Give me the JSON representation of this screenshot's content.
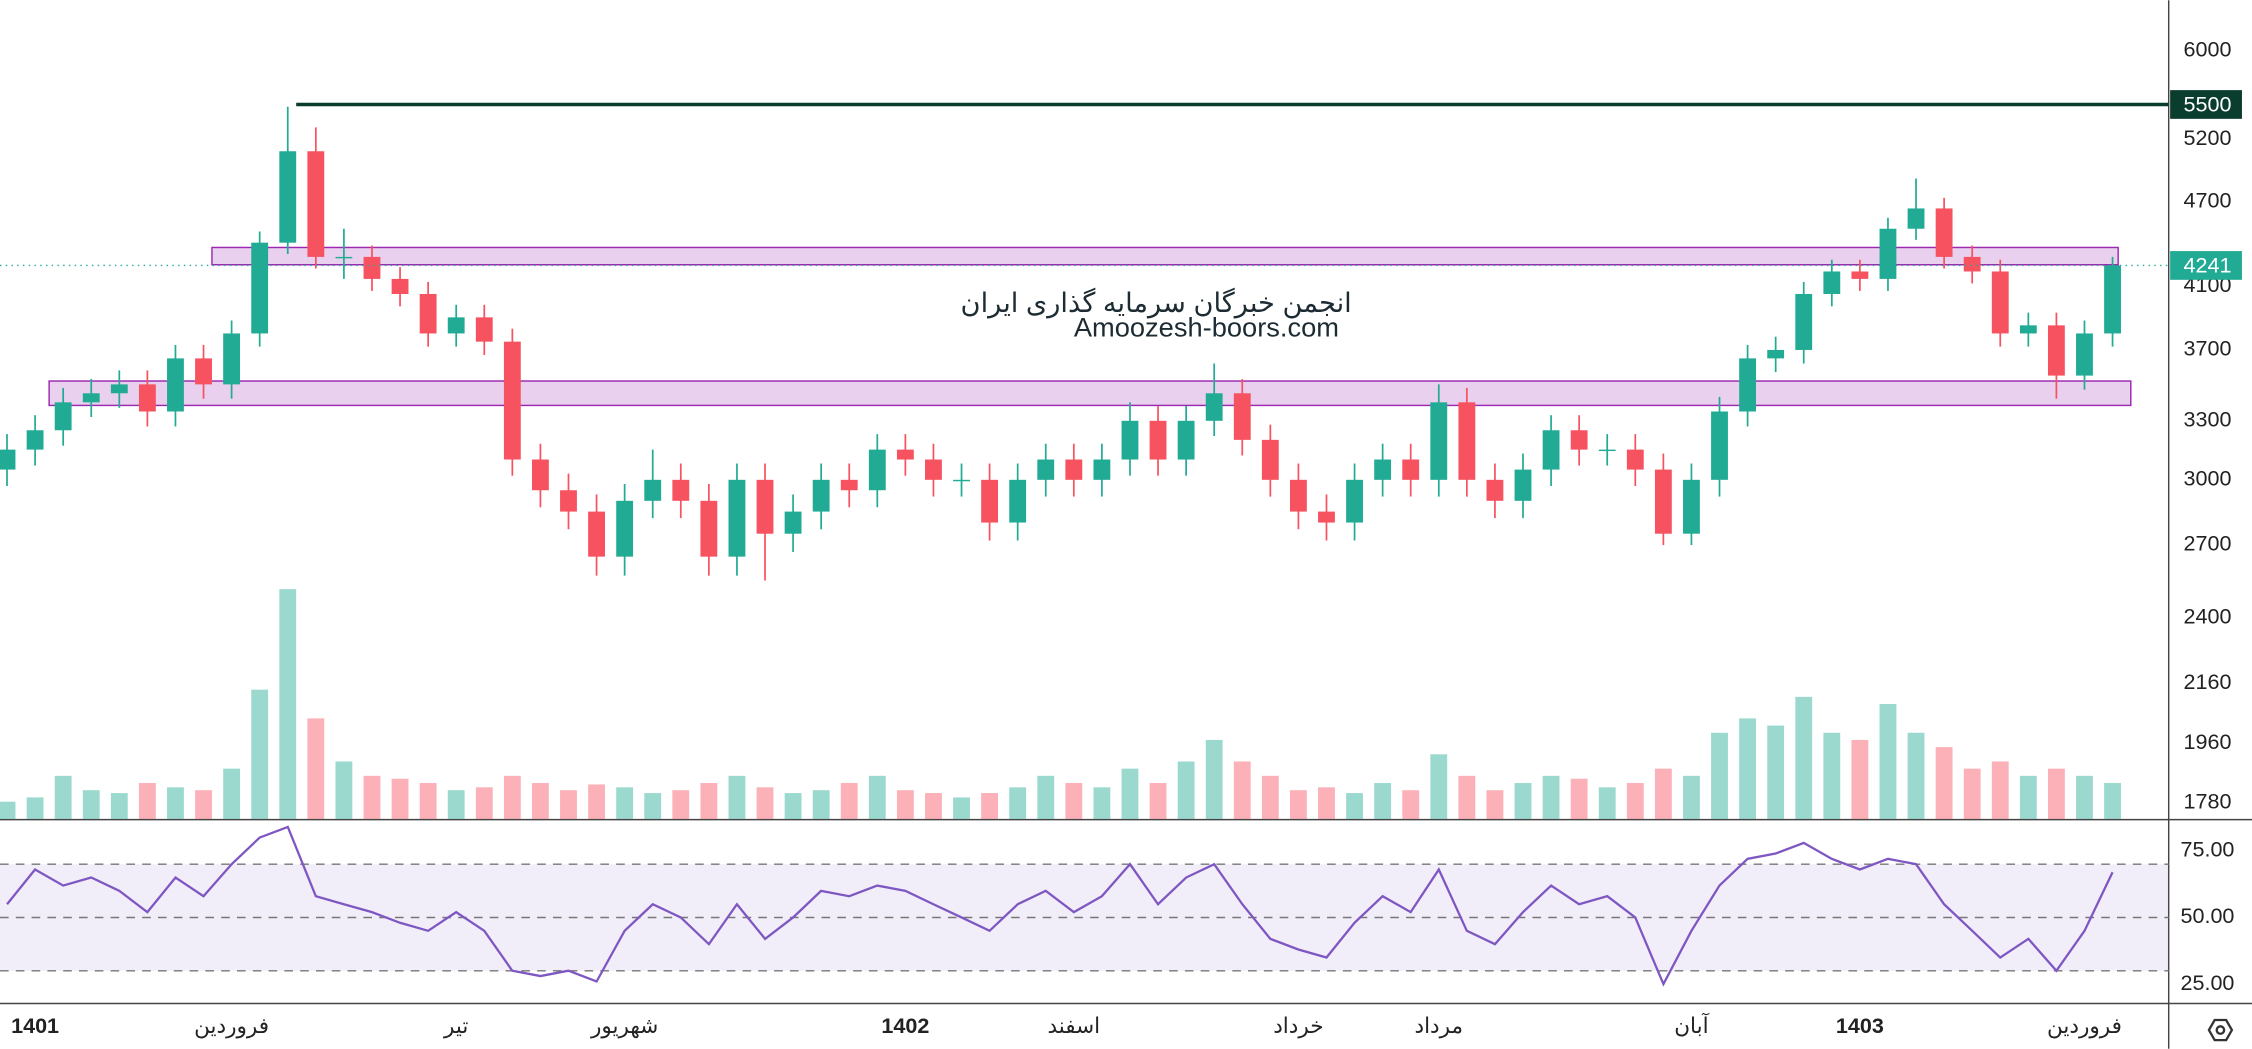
{
  "chart_data": {
    "type": "candlestick",
    "log_scale": true,
    "up_color": "#22ab94",
    "down_color": "#f7525f",
    "xlim": [
      -0.25,
      77
    ],
    "xticks": [
      {
        "value": 1,
        "label": "1401"
      },
      {
        "value": 8,
        "label": "فروردین"
      },
      {
        "value": 16,
        "label": "تیر"
      },
      {
        "value": 22,
        "label": "شهریور"
      },
      {
        "value": 32,
        "label": "1402"
      },
      {
        "value": 38,
        "label": "اسفند"
      },
      {
        "value": 46,
        "label": "خرداد"
      },
      {
        "value": 51,
        "label": "مرداد"
      },
      {
        "value": 60,
        "label": "آبان"
      },
      {
        "value": 66,
        "label": "1403"
      },
      {
        "value": 74,
        "label": "فروردین"
      }
    ],
    "ylim": [
      1735,
      6508
    ],
    "yticks": [
      6000,
      5200,
      4700,
      4100,
      3700,
      3300,
      3000,
      2700,
      2400,
      2160,
      1960,
      1780
    ],
    "open": [
      3050,
      3150,
      3250,
      3400,
      3450,
      3500,
      3350,
      3650,
      3500,
      3800,
      4400,
      5100,
      4300,
      4300,
      4150,
      4050,
      3800,
      3900,
      3750,
      3100,
      2950,
      2850,
      2650,
      2900,
      3000,
      2900,
      2650,
      3000,
      2750,
      2850,
      3000,
      2950,
      3150,
      3100,
      3000,
      3000,
      2800,
      3000,
      3100,
      3000,
      3100,
      3300,
      3100,
      3300,
      3450,
      3200,
      3000,
      2850,
      2800,
      3000,
      3100,
      3000,
      3400,
      3000,
      2900,
      3050,
      3250,
      3150,
      3150,
      3050,
      2750,
      3000,
      3350,
      3650,
      3700,
      4050,
      4200,
      4150,
      4500,
      4650,
      4300,
      4200,
      3800,
      3850,
      3550,
      3800
    ],
    "high": [
      3230,
      3330,
      3480,
      3530,
      3580,
      3580,
      3730,
      3730,
      3880,
      4480,
      5480,
      5300,
      4500,
      4380,
      4230,
      4130,
      3980,
      3980,
      3830,
      3180,
      3030,
      2930,
      2980,
      3150,
      3080,
      2980,
      3080,
      3080,
      2930,
      3080,
      3080,
      3230,
      3230,
      3180,
      3080,
      3080,
      3080,
      3180,
      3180,
      3180,
      3400,
      3380,
      3380,
      3620,
      3530,
      3280,
      3080,
      2930,
      3080,
      3180,
      3180,
      3500,
      3480,
      3080,
      3130,
      3330,
      3330,
      3230,
      3230,
      3130,
      3080,
      3430,
      3730,
      3780,
      4130,
      4280,
      4280,
      4580,
      4880,
      4730,
      4380,
      4280,
      3930,
      3930,
      3880,
      4300
    ],
    "low": [
      2970,
      3070,
      3170,
      3320,
      3370,
      3270,
      3270,
      3420,
      3420,
      3720,
      4320,
      4220,
      4150,
      4070,
      3970,
      3720,
      3720,
      3670,
      3020,
      2870,
      2770,
      2570,
      2570,
      2820,
      2820,
      2570,
      2570,
      2550,
      2670,
      2770,
      2870,
      2870,
      3020,
      2920,
      2920,
      2720,
      2720,
      2920,
      2920,
      2920,
      3020,
      3020,
      3020,
      3220,
      3120,
      2920,
      2770,
      2720,
      2720,
      2920,
      2920,
      2920,
      2920,
      2820,
      2820,
      2970,
      3070,
      3070,
      2970,
      2700,
      2700,
      2920,
      3270,
      3570,
      3620,
      3970,
      4070,
      4070,
      4420,
      4220,
      4120,
      3720,
      3720,
      3420,
      3470,
      3720
    ],
    "close": [
      3150,
      3250,
      3400,
      3450,
      3500,
      3350,
      3650,
      3500,
      3800,
      4400,
      5100,
      4300,
      4300,
      4150,
      4050,
      3800,
      3900,
      3750,
      3100,
      2950,
      2850,
      2650,
      2900,
      3000,
      2900,
      2650,
      3000,
      2750,
      2850,
      3000,
      2950,
      3150,
      3100,
      3000,
      3000,
      2800,
      3000,
      3100,
      3000,
      3100,
      3300,
      3100,
      3300,
      3450,
      3200,
      3000,
      2850,
      2800,
      3000,
      3100,
      3000,
      3400,
      3000,
      2900,
      3050,
      3250,
      3150,
      3150,
      3050,
      2750,
      3000,
      3350,
      3650,
      3700,
      4050,
      4200,
      4150,
      4500,
      4650,
      4300,
      4200,
      3800,
      3850,
      3550,
      3800,
      4241
    ],
    "volume": [
      12,
      15,
      30,
      20,
      18,
      25,
      22,
      20,
      35,
      90,
      160,
      70,
      40,
      30,
      28,
      25,
      20,
      22,
      30,
      25,
      20,
      24,
      22,
      18,
      20,
      25,
      30,
      22,
      18,
      20,
      25,
      30,
      20,
      18,
      15,
      18,
      22,
      30,
      25,
      22,
      35,
      25,
      40,
      55,
      40,
      30,
      20,
      22,
      18,
      25,
      20,
      45,
      30,
      20,
      25,
      30,
      28,
      22,
      25,
      35,
      30,
      60,
      70,
      65,
      85,
      60,
      55,
      80,
      60,
      50,
      35,
      40,
      30,
      35,
      30,
      25
    ],
    "levels": [
      {
        "value": 5500,
        "from": 10.3,
        "color": "#0b3d2e"
      }
    ],
    "zones": [
      {
        "low": 4246,
        "high": 4366,
        "from": 7.3,
        "to": 75.2
      },
      {
        "low": 3383,
        "high": 3519,
        "from": 1.5,
        "to": 75.65
      }
    ],
    "zone_color": "#9c27b0",
    "last_price": 4241,
    "last_price_color": "#22ab94",
    "watermark": [
      "انجمن خبرگان سرمایه گذاری ایران",
      "Amoozesh-boors.com"
    ],
    "rsi": {
      "color": "#7e57c2",
      "ylim": [
        18,
        87
      ],
      "yticks": [
        {
          "value": 75,
          "label": "75.00"
        },
        {
          "value": 50,
          "label": "50.00"
        },
        {
          "value": 25,
          "label": "25.00"
        }
      ],
      "levels": [
        30,
        50,
        70
      ],
      "values": [
        55,
        68,
        62,
        65,
        60,
        52,
        65,
        58,
        70,
        80,
        84,
        58,
        55,
        52,
        48,
        45,
        52,
        45,
        30,
        28,
        30,
        26,
        45,
        55,
        50,
        40,
        55,
        42,
        50,
        60,
        58,
        62,
        60,
        55,
        50,
        45,
        55,
        60,
        52,
        58,
        70,
        55,
        65,
        70,
        55,
        42,
        38,
        35,
        48,
        58,
        52,
        68,
        45,
        40,
        52,
        62,
        55,
        58,
        50,
        25,
        45,
        62,
        72,
        74,
        78,
        72,
        68,
        72,
        70,
        55,
        45,
        35,
        42,
        30,
        45,
        67
      ]
    }
  }
}
